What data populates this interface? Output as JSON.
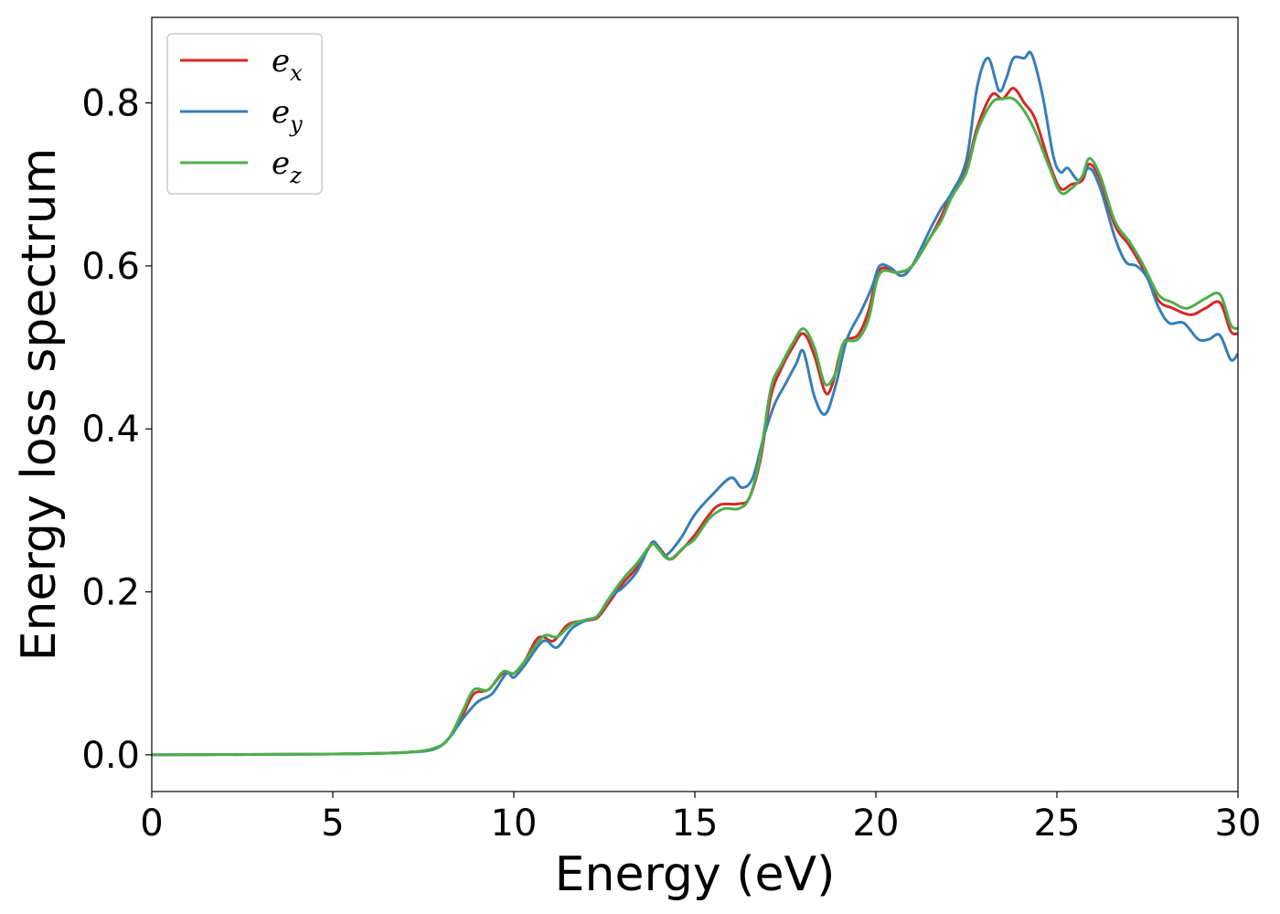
{
  "chart_data": {
    "type": "line",
    "xlabel": "Energy (eV)",
    "ylabel": "Energy loss spectrum",
    "xlim": [
      0,
      30
    ],
    "ylim": [
      -0.045,
      0.905
    ],
    "xticks": [
      0,
      5,
      10,
      15,
      20,
      25,
      30
    ],
    "xtick_labels": [
      "0",
      "5",
      "10",
      "15",
      "20",
      "25",
      "30"
    ],
    "yticks": [
      0.0,
      0.2,
      0.4,
      0.6,
      0.8
    ],
    "ytick_labels": [
      "0.0",
      "0.2",
      "0.4",
      "0.6",
      "0.8"
    ],
    "grid": false,
    "legend_position": "top-left",
    "series": [
      {
        "name": "e_x",
        "label_base": "e",
        "label_sub": "x",
        "color": "#d62728",
        "points": [
          [
            0,
            0
          ],
          [
            5,
            0.001
          ],
          [
            7,
            0.003
          ],
          [
            7.8,
            0.008
          ],
          [
            8.2,
            0.02
          ],
          [
            8.6,
            0.05
          ],
          [
            8.9,
            0.075
          ],
          [
            9.3,
            0.08
          ],
          [
            9.7,
            0.1
          ],
          [
            10.0,
            0.1
          ],
          [
            10.3,
            0.115
          ],
          [
            10.6,
            0.14
          ],
          [
            10.8,
            0.145
          ],
          [
            11.1,
            0.14
          ],
          [
            11.5,
            0.16
          ],
          [
            12.0,
            0.165
          ],
          [
            12.3,
            0.168
          ],
          [
            12.6,
            0.185
          ],
          [
            13.0,
            0.21
          ],
          [
            13.4,
            0.23
          ],
          [
            13.8,
            0.258
          ],
          [
            14.0,
            0.255
          ],
          [
            14.3,
            0.24
          ],
          [
            14.6,
            0.25
          ],
          [
            15.0,
            0.27
          ],
          [
            15.4,
            0.295
          ],
          [
            15.7,
            0.307
          ],
          [
            16.2,
            0.308
          ],
          [
            16.5,
            0.315
          ],
          [
            16.8,
            0.36
          ],
          [
            17.1,
            0.44
          ],
          [
            17.4,
            0.475
          ],
          [
            17.7,
            0.5
          ],
          [
            18.0,
            0.517
          ],
          [
            18.3,
            0.49
          ],
          [
            18.6,
            0.445
          ],
          [
            18.8,
            0.455
          ],
          [
            19.1,
            0.505
          ],
          [
            19.5,
            0.515
          ],
          [
            19.8,
            0.545
          ],
          [
            20.1,
            0.595
          ],
          [
            20.6,
            0.592
          ],
          [
            21.0,
            0.6
          ],
          [
            21.5,
            0.635
          ],
          [
            21.8,
            0.66
          ],
          [
            22.1,
            0.69
          ],
          [
            22.5,
            0.72
          ],
          [
            22.8,
            0.77
          ],
          [
            23.2,
            0.81
          ],
          [
            23.5,
            0.805
          ],
          [
            23.8,
            0.818
          ],
          [
            24.1,
            0.8
          ],
          [
            24.4,
            0.78
          ],
          [
            24.8,
            0.725
          ],
          [
            25.1,
            0.695
          ],
          [
            25.4,
            0.7
          ],
          [
            25.7,
            0.705
          ],
          [
            25.9,
            0.725
          ],
          [
            26.2,
            0.705
          ],
          [
            26.6,
            0.65
          ],
          [
            27.0,
            0.625
          ],
          [
            27.4,
            0.595
          ],
          [
            27.8,
            0.558
          ],
          [
            28.2,
            0.548
          ],
          [
            28.7,
            0.54
          ],
          [
            29.1,
            0.548
          ],
          [
            29.5,
            0.555
          ],
          [
            29.8,
            0.52
          ],
          [
            30.0,
            0.517
          ]
        ]
      },
      {
        "name": "e_y",
        "label_base": "e",
        "label_sub": "y",
        "color": "#377eb8",
        "points": [
          [
            0,
            0
          ],
          [
            5,
            0.001
          ],
          [
            7,
            0.003
          ],
          [
            7.8,
            0.007
          ],
          [
            8.2,
            0.02
          ],
          [
            8.6,
            0.045
          ],
          [
            9.0,
            0.065
          ],
          [
            9.4,
            0.075
          ],
          [
            9.8,
            0.1
          ],
          [
            10.0,
            0.095
          ],
          [
            10.3,
            0.11
          ],
          [
            10.7,
            0.135
          ],
          [
            10.9,
            0.14
          ],
          [
            11.2,
            0.132
          ],
          [
            11.6,
            0.155
          ],
          [
            12.0,
            0.165
          ],
          [
            12.3,
            0.17
          ],
          [
            12.7,
            0.195
          ],
          [
            13.0,
            0.205
          ],
          [
            13.4,
            0.225
          ],
          [
            13.8,
            0.26
          ],
          [
            14.0,
            0.255
          ],
          [
            14.2,
            0.245
          ],
          [
            14.6,
            0.265
          ],
          [
            15.0,
            0.295
          ],
          [
            15.5,
            0.32
          ],
          [
            16.0,
            0.34
          ],
          [
            16.3,
            0.328
          ],
          [
            16.6,
            0.34
          ],
          [
            16.9,
            0.39
          ],
          [
            17.2,
            0.43
          ],
          [
            17.5,
            0.455
          ],
          [
            17.8,
            0.48
          ],
          [
            18.0,
            0.495
          ],
          [
            18.3,
            0.44
          ],
          [
            18.6,
            0.418
          ],
          [
            18.9,
            0.455
          ],
          [
            19.2,
            0.51
          ],
          [
            19.6,
            0.545
          ],
          [
            19.9,
            0.575
          ],
          [
            20.1,
            0.6
          ],
          [
            20.4,
            0.598
          ],
          [
            20.7,
            0.588
          ],
          [
            21.0,
            0.6
          ],
          [
            21.5,
            0.645
          ],
          [
            21.8,
            0.67
          ],
          [
            22.1,
            0.69
          ],
          [
            22.5,
            0.73
          ],
          [
            22.8,
            0.82
          ],
          [
            23.1,
            0.855
          ],
          [
            23.4,
            0.815
          ],
          [
            23.6,
            0.83
          ],
          [
            23.8,
            0.855
          ],
          [
            24.1,
            0.855
          ],
          [
            24.3,
            0.86
          ],
          [
            24.6,
            0.81
          ],
          [
            24.9,
            0.735
          ],
          [
            25.1,
            0.715
          ],
          [
            25.3,
            0.72
          ],
          [
            25.6,
            0.705
          ],
          [
            25.9,
            0.72
          ],
          [
            26.2,
            0.695
          ],
          [
            26.6,
            0.635
          ],
          [
            26.9,
            0.605
          ],
          [
            27.2,
            0.6
          ],
          [
            27.5,
            0.585
          ],
          [
            27.8,
            0.55
          ],
          [
            28.1,
            0.53
          ],
          [
            28.5,
            0.53
          ],
          [
            28.9,
            0.51
          ],
          [
            29.2,
            0.51
          ],
          [
            29.5,
            0.515
          ],
          [
            29.8,
            0.485
          ],
          [
            30.0,
            0.492
          ]
        ]
      },
      {
        "name": "e_z",
        "label_base": "e",
        "label_sub": "z",
        "color": "#4daf4a",
        "points": [
          [
            0,
            0
          ],
          [
            5,
            0.001
          ],
          [
            7,
            0.003
          ],
          [
            7.8,
            0.008
          ],
          [
            8.2,
            0.02
          ],
          [
            8.6,
            0.055
          ],
          [
            8.9,
            0.08
          ],
          [
            9.3,
            0.08
          ],
          [
            9.7,
            0.102
          ],
          [
            10.0,
            0.1
          ],
          [
            10.3,
            0.115
          ],
          [
            10.7,
            0.14
          ],
          [
            10.9,
            0.147
          ],
          [
            11.2,
            0.145
          ],
          [
            11.6,
            0.16
          ],
          [
            12.0,
            0.166
          ],
          [
            12.3,
            0.17
          ],
          [
            12.6,
            0.19
          ],
          [
            13.0,
            0.215
          ],
          [
            13.4,
            0.235
          ],
          [
            13.8,
            0.258
          ],
          [
            14.0,
            0.252
          ],
          [
            14.3,
            0.24
          ],
          [
            14.7,
            0.255
          ],
          [
            15.0,
            0.265
          ],
          [
            15.4,
            0.29
          ],
          [
            15.8,
            0.302
          ],
          [
            16.2,
            0.302
          ],
          [
            16.5,
            0.315
          ],
          [
            16.8,
            0.365
          ],
          [
            17.1,
            0.45
          ],
          [
            17.4,
            0.48
          ],
          [
            17.7,
            0.505
          ],
          [
            18.0,
            0.523
          ],
          [
            18.3,
            0.5
          ],
          [
            18.6,
            0.455
          ],
          [
            18.9,
            0.47
          ],
          [
            19.1,
            0.505
          ],
          [
            19.5,
            0.51
          ],
          [
            19.8,
            0.535
          ],
          [
            20.1,
            0.59
          ],
          [
            20.6,
            0.592
          ],
          [
            21.0,
            0.6
          ],
          [
            21.5,
            0.635
          ],
          [
            21.8,
            0.655
          ],
          [
            22.1,
            0.685
          ],
          [
            22.5,
            0.715
          ],
          [
            22.8,
            0.765
          ],
          [
            23.2,
            0.8
          ],
          [
            23.5,
            0.805
          ],
          [
            23.8,
            0.805
          ],
          [
            24.1,
            0.79
          ],
          [
            24.4,
            0.765
          ],
          [
            24.8,
            0.72
          ],
          [
            25.1,
            0.69
          ],
          [
            25.4,
            0.695
          ],
          [
            25.7,
            0.71
          ],
          [
            25.9,
            0.732
          ],
          [
            26.2,
            0.71
          ],
          [
            26.6,
            0.655
          ],
          [
            27.0,
            0.63
          ],
          [
            27.4,
            0.6
          ],
          [
            27.8,
            0.565
          ],
          [
            28.2,
            0.555
          ],
          [
            28.6,
            0.548
          ],
          [
            29.1,
            0.56
          ],
          [
            29.5,
            0.565
          ],
          [
            29.8,
            0.528
          ],
          [
            30.0,
            0.523
          ]
        ]
      }
    ]
  }
}
